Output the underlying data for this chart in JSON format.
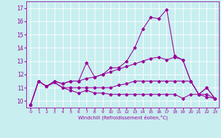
{
  "bg_color": "#c8eef0",
  "line_color": "#990099",
  "grid_color": "#ffffff",
  "xmin": -0.5,
  "xmax": 23.5,
  "ymin": 9.5,
  "ymax": 17.5,
  "yticks": [
    10,
    11,
    12,
    13,
    14,
    15,
    16,
    17
  ],
  "xticks": [
    0,
    1,
    2,
    3,
    4,
    5,
    6,
    7,
    8,
    9,
    10,
    11,
    12,
    13,
    14,
    15,
    16,
    17,
    18,
    19,
    20,
    21,
    22,
    23
  ],
  "xlabel": "Windchill (Refroidissement éolien,°C)",
  "line1_x": [
    0,
    1,
    2,
    3,
    4,
    5,
    6,
    7,
    8,
    9,
    10,
    11,
    12,
    13,
    14,
    15,
    16,
    17,
    18,
    19,
    20,
    21,
    22,
    23
  ],
  "line1_y": [
    9.7,
    11.5,
    11.1,
    11.4,
    11.0,
    10.8,
    10.6,
    10.8,
    10.6,
    10.6,
    10.5,
    10.5,
    10.5,
    10.5,
    10.5,
    10.5,
    10.5,
    10.5,
    10.5,
    10.2,
    10.5,
    10.5,
    10.3,
    10.2
  ],
  "line2_x": [
    0,
    1,
    2,
    3,
    4,
    5,
    6,
    7,
    8,
    9,
    10,
    11,
    12,
    13,
    14,
    15,
    16,
    17,
    18,
    19,
    20,
    21,
    22,
    23
  ],
  "line2_y": [
    9.7,
    11.5,
    11.1,
    11.4,
    11.0,
    11.0,
    11.0,
    11.0,
    11.0,
    11.0,
    11.0,
    11.2,
    11.3,
    11.5,
    11.5,
    11.5,
    11.5,
    11.5,
    11.5,
    11.5,
    11.5,
    10.5,
    11.0,
    10.2
  ],
  "line3_x": [
    0,
    1,
    2,
    3,
    4,
    5,
    6,
    7,
    8,
    9,
    10,
    11,
    12,
    13,
    14,
    15,
    16,
    17,
    18,
    19,
    20,
    21,
    22,
    23
  ],
  "line3_y": [
    9.7,
    11.5,
    11.1,
    11.5,
    11.3,
    11.5,
    11.5,
    11.7,
    11.8,
    12.0,
    12.2,
    12.4,
    12.6,
    12.8,
    13.0,
    13.2,
    13.3,
    13.1,
    13.3,
    13.1,
    11.5,
    10.5,
    10.5,
    10.2
  ],
  "line4_x": [
    0,
    1,
    2,
    3,
    4,
    5,
    6,
    7,
    8,
    9,
    10,
    11,
    12,
    13,
    14,
    15,
    16,
    17,
    18,
    19,
    20,
    21,
    22,
    23
  ],
  "line4_y": [
    9.7,
    11.5,
    11.1,
    11.5,
    11.3,
    11.5,
    11.5,
    12.9,
    11.8,
    12.0,
    12.5,
    12.5,
    13.0,
    14.0,
    15.4,
    16.3,
    16.2,
    16.9,
    13.4,
    13.1,
    11.5,
    10.5,
    11.0,
    10.2
  ]
}
